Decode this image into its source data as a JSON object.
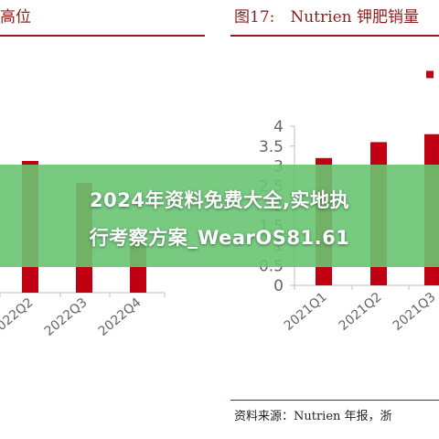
{
  "header_left": "高位",
  "header_right": "图17:　Nutrien 钾肥销量",
  "banner": {
    "line1": "2024年资料免费大全,实地执",
    "line2": "行考察方案_WearOS81.61"
  },
  "source_text": "资料来源：Nutrien 年报，浙",
  "colors": {
    "bar": "#c00012",
    "accent": "#8f1d1d",
    "axis": "#bfbfbf",
    "tick_text": "#666666",
    "banner": "#68c472"
  },
  "chart_data": [
    {
      "type": "bar",
      "title": "",
      "xlabel": "",
      "ylabel": "",
      "categories": [
        "2022Q2",
        "2022Q3",
        "2022Q4"
      ],
      "tick_labels": [
        "2022Q2",
        "2022Q3",
        "2022Q4"
      ],
      "values": [
        3.6,
        3.0,
        1.4
      ],
      "ylim": [
        0,
        4.2
      ],
      "grid": false,
      "legend": "none"
    },
    {
      "type": "bar",
      "title": "",
      "xlabel": "",
      "ylabel": "",
      "categories": [
        "2021Q1",
        "2021Q2",
        "2021Q3"
      ],
      "tick_labels": [
        "2021Q1",
        "2021Q2",
        "2021Q3"
      ],
      "values": [
        3.2,
        3.6,
        3.8
      ],
      "extra_marker_value": 5.3,
      "y_ticks": [
        "0",
        "0.5",
        "1",
        "1.5",
        "2",
        "2.5",
        "3",
        "3.5",
        "4"
      ],
      "ylim": [
        0,
        4
      ],
      "grid": false,
      "legend": "none"
    }
  ]
}
